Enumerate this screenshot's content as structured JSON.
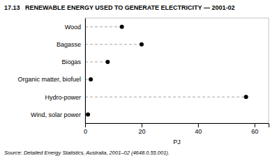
{
  "chart_data": {
    "type": "dot",
    "orientation": "horizontal",
    "title": "17.13   RENEWABLE ENERGY USED TO GENERATE ELECTRICITY — 2001-02",
    "categories": [
      "Wind, solar power",
      "Hydro-power",
      "Organic matter, biofuel",
      "Biogas",
      "Bagasse",
      "Wood"
    ],
    "values": [
      1,
      57,
      2,
      8,
      20,
      13
    ],
    "color": "#000000",
    "xlabel": "PJ",
    "xlim": [
      0,
      65
    ],
    "xticks": [
      0,
      20,
      40,
      60
    ],
    "source": "Source: Detailed Energy Statistics, Australia, 2001–02 (4648.0.55.001).",
    "grid": false
  }
}
